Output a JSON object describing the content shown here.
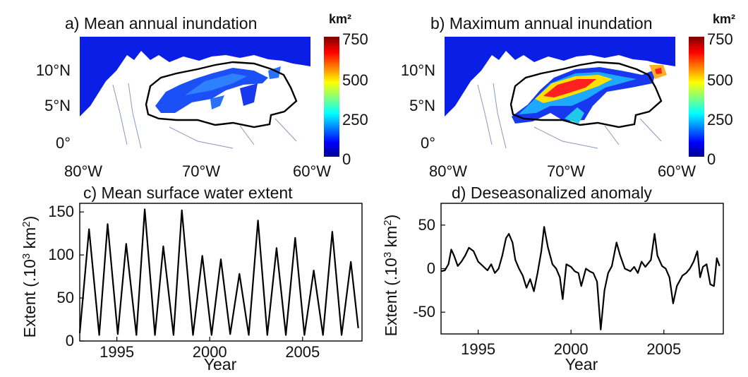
{
  "maps": [
    {
      "id": "a",
      "title": "a) Mean annual inundation",
      "colorbar_unit": "km²",
      "colorbar_ticks": [
        "750",
        "500",
        "250",
        "0"
      ],
      "colorbar_range": [
        0,
        750
      ],
      "lat_ticks": [
        "10°N",
        "5°N",
        "0°"
      ],
      "lon_ticks": [
        "80°W",
        "70°W",
        "60°W"
      ],
      "ocean_color": "#0a1ee6",
      "land_color": "#ffffff",
      "level": "mean"
    },
    {
      "id": "b",
      "title": "b) Maximum annual inundation",
      "colorbar_unit": "km²",
      "colorbar_ticks": [
        "750",
        "500",
        "250",
        "0"
      ],
      "colorbar_range": [
        0,
        750
      ],
      "lat_ticks": [
        "10°N",
        "5°N",
        "0°"
      ],
      "lon_ticks": [
        "80°W",
        "70°W",
        "60°W"
      ],
      "ocean_color": "#0a1ee6",
      "land_color": "#ffffff",
      "level": "max"
    }
  ],
  "chart_data": [
    {
      "type": "line",
      "title": "c) Mean surface water extent",
      "xlabel": "Year",
      "ylabel_prefix": "Extent (.10",
      "ylabel_sup1": "3",
      "ylabel_mid": " km",
      "ylabel_sup2": "2",
      "ylabel_suffix": ")",
      "xlim": [
        1993,
        2008.2
      ],
      "ylim": [
        0,
        160
      ],
      "xticks": [
        1995,
        2000,
        2005
      ],
      "yticks": [
        0,
        50,
        100,
        150
      ],
      "peaks": [
        [
          1993.5,
          130
        ],
        [
          1994.5,
          136
        ],
        [
          1995.5,
          113
        ],
        [
          1996.5,
          153
        ],
        [
          1997.5,
          110
        ],
        [
          1998.5,
          152
        ],
        [
          1999.6,
          99
        ],
        [
          2000.6,
          95
        ],
        [
          2001.6,
          78
        ],
        [
          2002.6,
          140
        ],
        [
          2003.6,
          108
        ],
        [
          2004.6,
          120
        ],
        [
          2005.6,
          82
        ],
        [
          2006.6,
          127
        ],
        [
          2007.6,
          92
        ]
      ],
      "troughs": [
        [
          1993.0,
          9
        ],
        [
          1994.05,
          7
        ],
        [
          1995.05,
          8
        ],
        [
          1996.05,
          7
        ],
        [
          1997.05,
          7
        ],
        [
          1998.05,
          7
        ],
        [
          1999.1,
          7
        ],
        [
          2000.1,
          7
        ],
        [
          2001.1,
          8
        ],
        [
          2002.1,
          7
        ],
        [
          2003.1,
          7
        ],
        [
          2004.1,
          7
        ],
        [
          2005.1,
          7
        ],
        [
          2006.1,
          7
        ],
        [
          2007.1,
          7
        ],
        [
          2008.0,
          15
        ]
      ],
      "color": "#000000"
    },
    {
      "type": "line",
      "title": "d) Deseasonalized anomaly",
      "xlabel": "Year",
      "ylabel_prefix": "Extent (.10",
      "ylabel_sup1": "3",
      "ylabel_mid": " km",
      "ylabel_sup2": "2",
      "ylabel_suffix": ")",
      "xlim": [
        1993,
        2008.2
      ],
      "ylim": [
        -75,
        75
      ],
      "xticks": [
        1995,
        2000,
        2005
      ],
      "yticks": [
        50,
        0,
        -50
      ],
      "points": [
        [
          1993.0,
          -3
        ],
        [
          1993.2,
          -2
        ],
        [
          1993.4,
          5
        ],
        [
          1993.55,
          22
        ],
        [
          1993.7,
          15
        ],
        [
          1993.9,
          3
        ],
        [
          1994.1,
          8
        ],
        [
          1994.3,
          15
        ],
        [
          1994.5,
          24
        ],
        [
          1994.75,
          20
        ],
        [
          1995.0,
          8
        ],
        [
          1995.3,
          2
        ],
        [
          1995.5,
          -2
        ],
        [
          1995.7,
          5
        ],
        [
          1995.9,
          -5
        ],
        [
          1996.1,
          0
        ],
        [
          1996.3,
          15
        ],
        [
          1996.5,
          35
        ],
        [
          1996.65,
          40
        ],
        [
          1996.85,
          30
        ],
        [
          1997.0,
          10
        ],
        [
          1997.2,
          0
        ],
        [
          1997.4,
          -8
        ],
        [
          1997.6,
          -22
        ],
        [
          1997.8,
          -12
        ],
        [
          1998.0,
          -26
        ],
        [
          1998.2,
          -5
        ],
        [
          1998.4,
          20
        ],
        [
          1998.55,
          48
        ],
        [
          1998.75,
          25
        ],
        [
          1999.0,
          5
        ],
        [
          1999.2,
          0
        ],
        [
          1999.4,
          -10
        ],
        [
          1999.55,
          -35
        ],
        [
          1999.75,
          5
        ],
        [
          2000.0,
          2
        ],
        [
          2000.2,
          -3
        ],
        [
          2000.4,
          -5
        ],
        [
          2000.55,
          -20
        ],
        [
          2000.8,
          0
        ],
        [
          2001.0,
          -3
        ],
        [
          2001.2,
          -5
        ],
        [
          2001.4,
          -15
        ],
        [
          2001.6,
          -70
        ],
        [
          2001.8,
          -25
        ],
        [
          2002.0,
          -5
        ],
        [
          2002.2,
          3
        ],
        [
          2002.45,
          30
        ],
        [
          2002.65,
          15
        ],
        [
          2002.9,
          0
        ],
        [
          2003.2,
          -3
        ],
        [
          2003.4,
          2
        ],
        [
          2003.6,
          -5
        ],
        [
          2003.8,
          8
        ],
        [
          2004.0,
          2
        ],
        [
          2004.3,
          10
        ],
        [
          2004.5,
          40
        ],
        [
          2004.65,
          15
        ],
        [
          2004.9,
          3
        ],
        [
          2005.1,
          0
        ],
        [
          2005.3,
          -10
        ],
        [
          2005.5,
          -40
        ],
        [
          2005.7,
          -20
        ],
        [
          2006.0,
          -8
        ],
        [
          2006.2,
          -5
        ],
        [
          2006.4,
          0
        ],
        [
          2006.6,
          8
        ],
        [
          2006.8,
          20
        ],
        [
          2006.95,
          -10
        ],
        [
          2007.1,
          2
        ],
        [
          2007.3,
          5
        ],
        [
          2007.5,
          -18
        ],
        [
          2007.7,
          -20
        ],
        [
          2007.85,
          12
        ],
        [
          2008.0,
          3
        ]
      ],
      "color": "#000000"
    }
  ]
}
